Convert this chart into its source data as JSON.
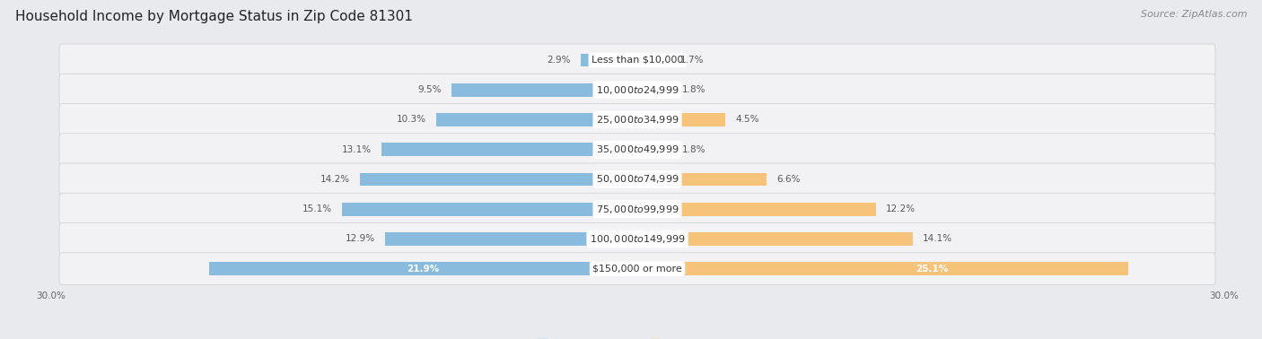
{
  "title": "Household Income by Mortgage Status in Zip Code 81301",
  "source": "Source: ZipAtlas.com",
  "categories": [
    "Less than $10,000",
    "$10,000 to $24,999",
    "$25,000 to $34,999",
    "$35,000 to $49,999",
    "$50,000 to $74,999",
    "$75,000 to $99,999",
    "$100,000 to $149,999",
    "$150,000 or more"
  ],
  "without_mortgage": [
    2.9,
    9.5,
    10.3,
    13.1,
    14.2,
    15.1,
    12.9,
    21.9
  ],
  "with_mortgage": [
    1.7,
    1.8,
    4.5,
    1.8,
    6.6,
    12.2,
    14.1,
    25.1
  ],
  "xlim": 30.0,
  "color_without": "#88bbdd",
  "color_with": "#f5c47a",
  "bg_color": "#e8eaed",
  "row_bg_color": "#f2f2f4",
  "title_fontsize": 11,
  "source_fontsize": 8,
  "label_fontsize": 8,
  "bar_label_fontsize": 7.5,
  "axis_label_fontsize": 7.5
}
